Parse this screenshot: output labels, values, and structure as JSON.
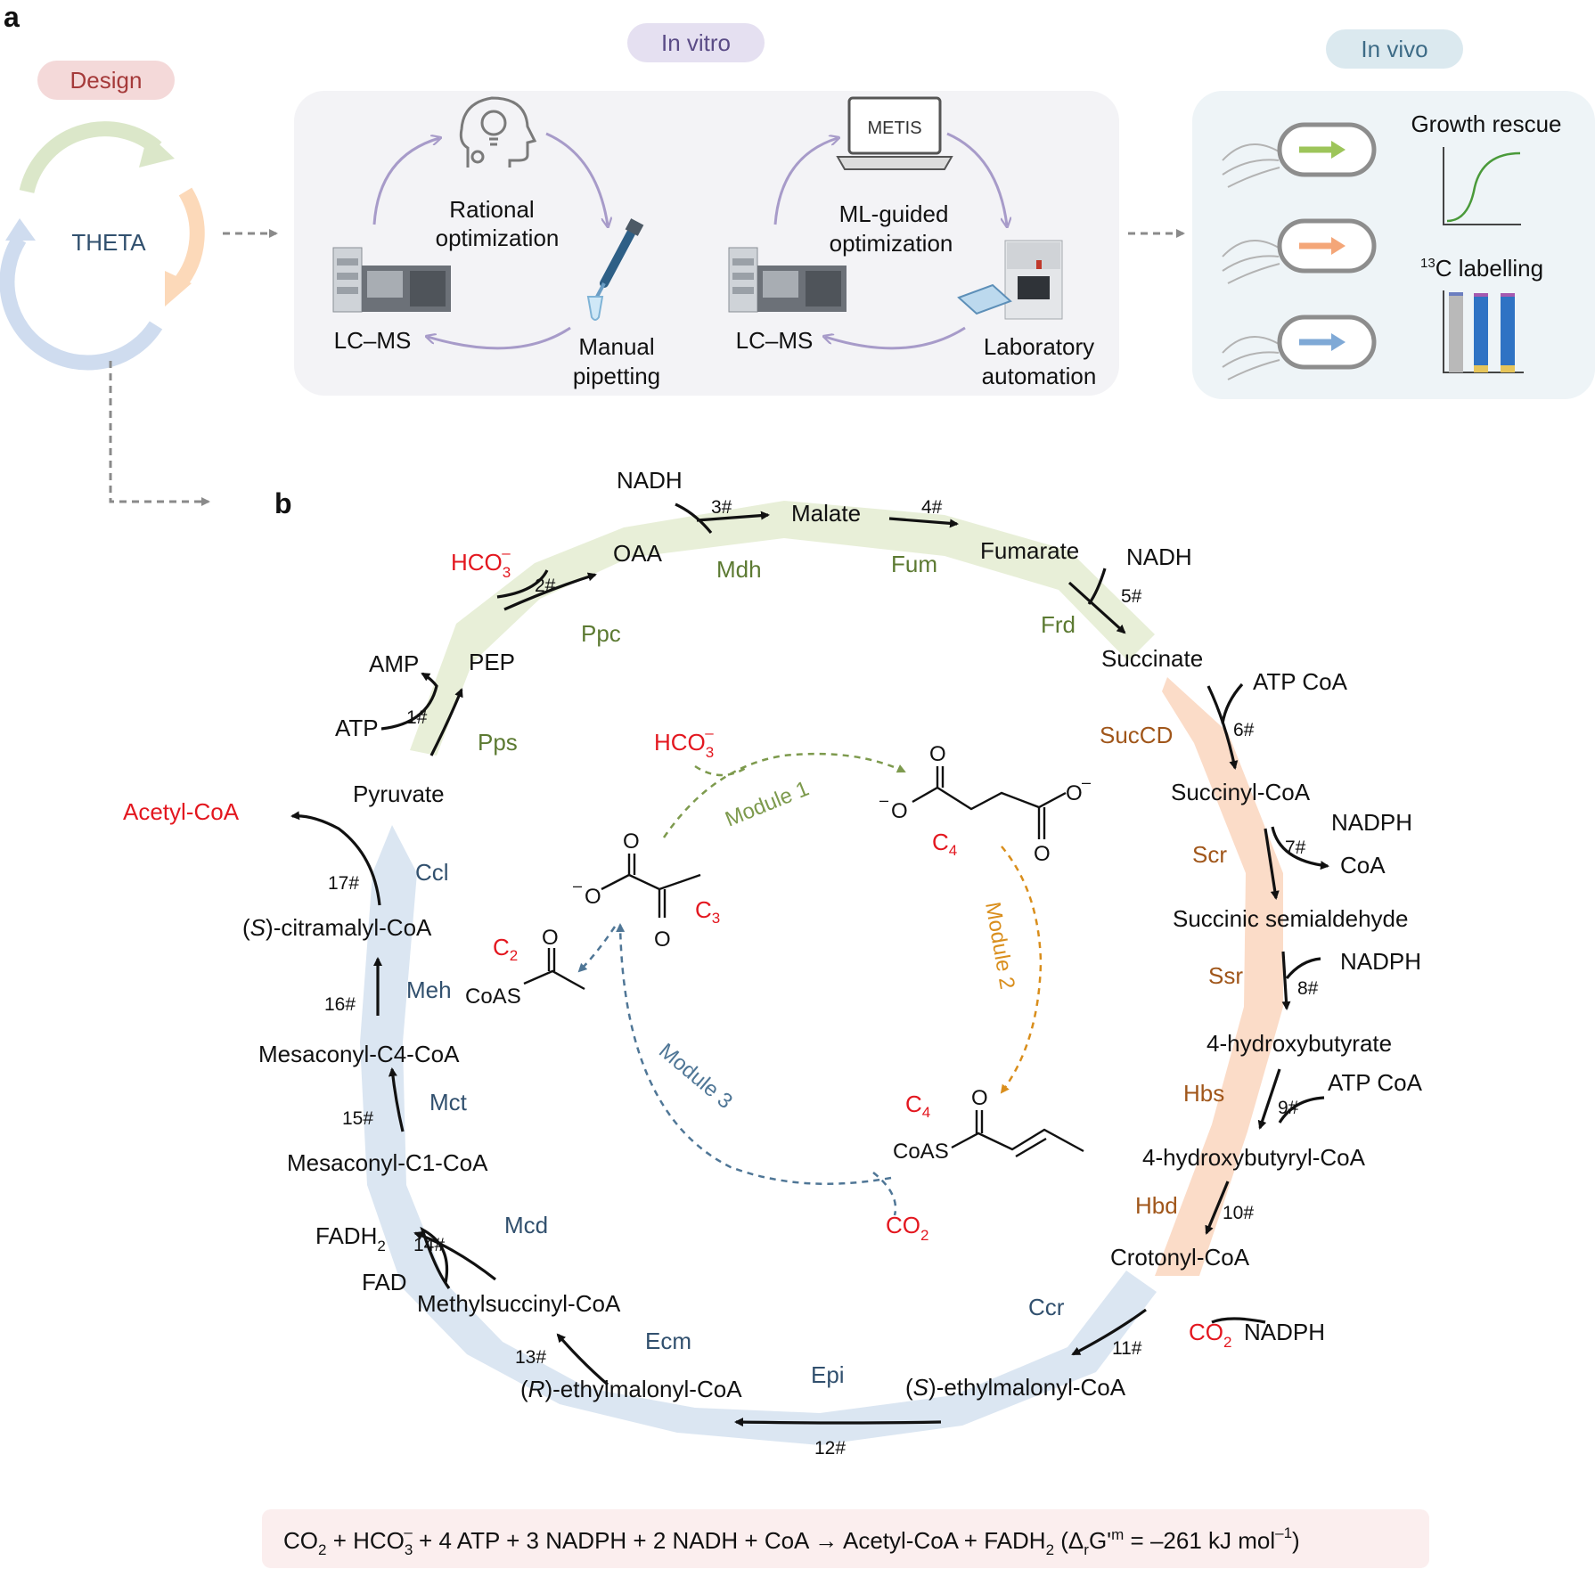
{
  "colors": {
    "red": "#e3171f",
    "green_text": "#5c7a32",
    "orange_text": "#a0561a",
    "blue_text": "#31506e",
    "band_green": "#e8efd8",
    "band_orange": "#fbdcc8",
    "band_blue": "#dbe6f2",
    "module1": "#7d9a4d",
    "module2": "#d98e1c",
    "module3": "#4f7696",
    "lavender": "#a79bc9"
  },
  "panel_a": {
    "label": "a",
    "design_badge": "Design",
    "in_vitro_badge": "In vitro",
    "in_vivo_badge": "In vivo",
    "theta": "THETA",
    "lcms": "LC–MS",
    "rational": [
      "Rational",
      "optimization"
    ],
    "manual": [
      "Manual",
      "pipetting"
    ],
    "ml": [
      "ML-guided",
      "optimization"
    ],
    "lab": [
      "Laboratory",
      "automation"
    ],
    "metis": "METIS",
    "growth_rescue": "Growth rescue",
    "labelling_sup": "13",
    "labelling": "C labelling"
  },
  "panel_b": {
    "label": "b",
    "metabolites": {
      "pyruvate": "Pyruvate",
      "pep": "PEP",
      "oaa": "OAA",
      "malate": "Malate",
      "fumarate": "Fumarate",
      "succinate": "Succinate",
      "succinyl_coa": "Succinyl-CoA",
      "ssa": "Succinic semialdehyde",
      "hb": "4-hydroxybutyrate",
      "hb_coa": "4-hydroxybutyryl-CoA",
      "crotonyl": "Crotonyl-CoA",
      "s_emc": "-ethylmalonyl-CoA",
      "r_emc": "-ethylmalonyl-CoA",
      "msc": "Methylsuccinyl-CoA",
      "mc1": "Mesaconyl-C1-CoA",
      "mc4": "Mesaconyl-C4-CoA",
      "scit": "-citramalyl-CoA",
      "acetyl": "Acetyl-CoA",
      "S": "S",
      "R": "R"
    },
    "enzymes": {
      "pps": "Pps",
      "ppc": "Ppc",
      "mdh": "Mdh",
      "fum": "Fum",
      "frd": "Frd",
      "succd": "SucCD",
      "scr": "Scr",
      "ssr": "Ssr",
      "hbs": "Hbs",
      "hbd": "Hbd",
      "ccr": "Ccr",
      "epi": "Epi",
      "ecm": "Ecm",
      "mcd": "Mcd",
      "mct": "Mct",
      "meh": "Meh",
      "ccl": "Ccl"
    },
    "steps": [
      "1#",
      "2#",
      "3#",
      "4#",
      "5#",
      "6#",
      "7#",
      "8#",
      "9#",
      "10#",
      "11#",
      "12#",
      "13#",
      "14#",
      "15#",
      "16#",
      "17#"
    ],
    "cofactors": {
      "atp": "ATP",
      "amp": "AMP",
      "hco3": "HCO",
      "hco3_sub": "3",
      "hco3_sup": "–",
      "nadh": "NADH",
      "atp_coa": "ATP CoA",
      "nadph": "NADPH",
      "coa": "CoA",
      "co2": "CO",
      "co2_sub": "2",
      "fadh": "FADH",
      "fadh_sub": "2",
      "fad": "FAD"
    },
    "modules": [
      "Module 1",
      "Module 2",
      "Module 3"
    ],
    "carbon": {
      "c": "C",
      "c2": "2",
      "c3": "3",
      "c4": "4"
    },
    "chem": {
      "o": "O",
      "o_minus": "–",
      "coas": "CoAS"
    },
    "equation": {
      "co2": "CO",
      "co2_sub": "2",
      "plus_hco3": " + HCO",
      "hco3_sub": "3",
      "hco3_sup": "–",
      "middle": " + 4 ATP  + 3 NADPH  + 2 NADH + CoA → Acetyl-CoA + FADH",
      "fadh_sub": "2",
      "paren_open": " (Δ",
      "r_sub": "r",
      "g": "G'",
      "m_sup": "m",
      "value": " = –261 kJ mol",
      "exp": "–1",
      "paren_close": ")"
    }
  }
}
